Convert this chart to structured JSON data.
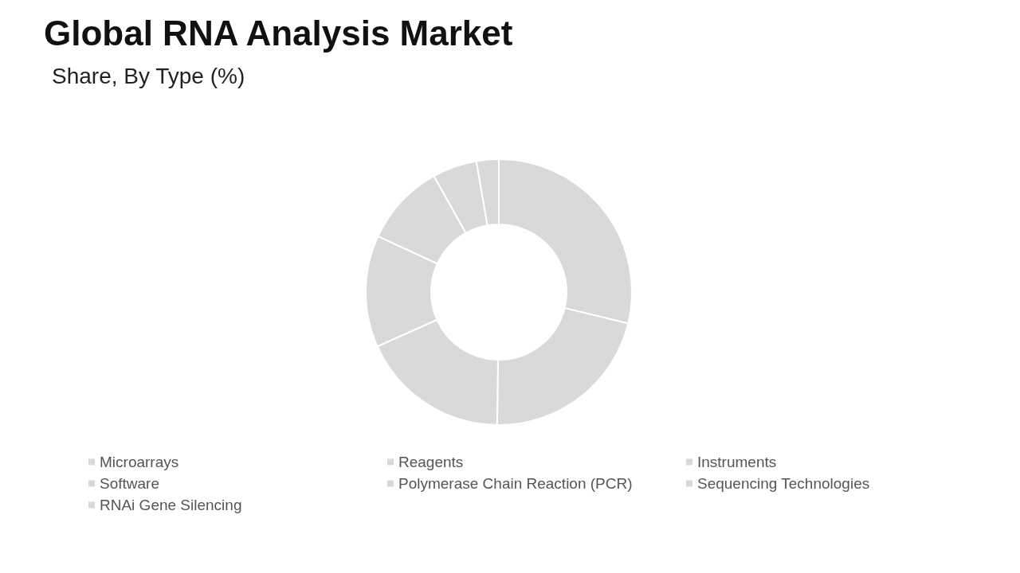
{
  "chart_data": {
    "type": "donut",
    "title": "Global RNA Analysis Market",
    "subtitle": "Share, By Type (%)",
    "categories": [
      "Microarrays",
      "Reagents",
      "Instruments",
      "Software",
      "Polymerase Chain Reaction (PCR)",
      "Sequencing Technologies",
      "RNAi Gene Silencing"
    ],
    "values": [
      28.8,
      21.4,
      18.1,
      13.6,
      10,
      5.4,
      2.7
    ],
    "colors": [
      "#d9d9d9",
      "#d9d9d9",
      "#d9d9d9",
      "#d9d9d9",
      "#d9d9d9",
      "#d9d9d9",
      "#d9d9d9"
    ],
    "legend": "bottom"
  }
}
